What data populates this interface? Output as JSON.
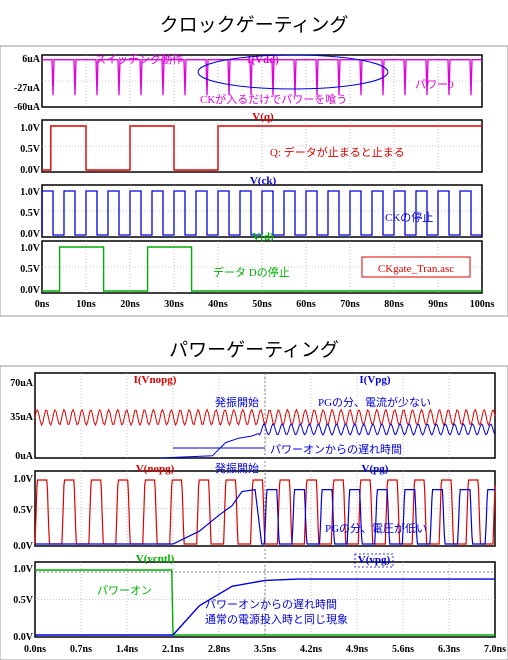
{
  "top": {
    "section_title": "クロックゲーティング",
    "x_ticks": [
      "0ns",
      "10ns",
      "20ns",
      "30ns",
      "40ns",
      "50ns",
      "60ns",
      "70ns",
      "80ns",
      "90ns",
      "100ns"
    ],
    "panels": [
      {
        "trace_label": "I(Vdd)",
        "y_ticks": [
          "6uA",
          "-27uA",
          "-60uA"
        ],
        "note_top": "スイッチング動作",
        "note_right": "パワー0",
        "note_center": "CKが入るだけでパワーを喰う",
        "color": "#e000e0"
      },
      {
        "trace_label": "V(q)",
        "y_ticks": [
          "1.0V",
          "0.5V",
          "0.0V"
        ],
        "note": "Q: データが止まると止まる",
        "color": "#e00000"
      },
      {
        "trace_label": "V(ck)",
        "y_ticks": [
          "1.0V",
          "0.5V",
          "0.0V"
        ],
        "note": "CKの停止",
        "color": "#0000e0"
      },
      {
        "trace_label": "V(d)",
        "y_ticks": [
          "1.0V",
          "0.5V",
          "0.0V"
        ],
        "note": "データ Dの停止",
        "box_label": "CKgate_Tran.asc",
        "color": "#00b000"
      }
    ]
  },
  "bottom": {
    "section_title": "パワーゲーティング",
    "x_ticks": [
      "0.0ns",
      "0.7ns",
      "1.4ns",
      "2.1ns",
      "2.8ns",
      "3.5ns",
      "4.2ns",
      "4.9ns",
      "5.6ns",
      "6.3ns",
      "7.0ns"
    ],
    "panels": [
      {
        "trace_label_1": "I(Vnopg)",
        "trace_label_2": "I(Vpg)",
        "y_ticks": [
          "70uA",
          "35uA",
          "0uA"
        ],
        "note_osc": "発振開始",
        "note_pg": "PGの分、電流が少ない",
        "note_delay": "パワーオンからの遅れ時間"
      },
      {
        "trace_label_1": "V(nopg)",
        "trace_label_2": "V(pg)",
        "y_ticks": [
          "1.0V",
          "0.5V",
          "0.0V"
        ],
        "note_osc": "発振開始",
        "note_pg": "PGの分、電圧が低い"
      },
      {
        "trace_label_1": "V(vcntl)",
        "trace_label_2": "V(vpg)",
        "y_ticks": [
          "1.0V",
          "0.5V",
          "0.0V"
        ],
        "note_on": "パワーオン",
        "note_delay": "パワーオンからの遅れ時間",
        "note_same": "通常の電源投入時と同じ現象"
      }
    ]
  },
  "chart_data": [
    {
      "type": "line",
      "title": "クロックゲーティング",
      "xlabel": "",
      "ylabel": "",
      "xlim": [
        0,
        100
      ],
      "series": [
        {
          "name": "I(Vdd)",
          "ylim": [
            -60,
            6
          ],
          "description_values": {
            "idle": 0,
            "spike": -45
          }
        },
        {
          "name": "V(q)",
          "ylim": [
            0,
            1
          ],
          "x": [
            0,
            2,
            2,
            10,
            10,
            20,
            20,
            30,
            30,
            40,
            40,
            100
          ],
          "y": [
            0,
            0,
            1,
            1,
            0,
            0,
            1,
            1,
            0,
            0,
            1,
            1
          ]
        },
        {
          "name": "V(ck)",
          "ylim": [
            0,
            1
          ],
          "period": 5,
          "active_until": 100
        },
        {
          "name": "V(d)",
          "ylim": [
            0,
            1
          ],
          "x": [
            0,
            4,
            4,
            14,
            14,
            24,
            24,
            34,
            34,
            100
          ],
          "y": [
            0,
            0,
            1,
            1,
            0,
            0,
            1,
            1,
            0,
            0
          ]
        }
      ]
    },
    {
      "type": "line",
      "title": "パワーゲーティング",
      "xlabel": "",
      "ylabel": "",
      "xlim": [
        0,
        7
      ],
      "series": [
        {
          "name": "I(Vnopg)",
          "ylim": [
            0,
            70
          ],
          "center": 37,
          "amplitude": 7
        },
        {
          "name": "I(Vpg)",
          "ylim": [
            0,
            70
          ],
          "center": 26,
          "amplitude": 5,
          "start": 3.4
        },
        {
          "name": "V(nopg)",
          "ylim": [
            0,
            1
          ],
          "period": 0.41
        },
        {
          "name": "V(pg)",
          "ylim": [
            0,
            1
          ],
          "high": 0.85,
          "start": 2.1
        },
        {
          "name": "V(vcntl)",
          "ylim": [
            0,
            1
          ],
          "x": [
            0,
            2.08,
            2.1,
            7.0
          ],
          "y": [
            1,
            1,
            0,
            0
          ]
        },
        {
          "name": "V(vpg)",
          "ylim": [
            0,
            1
          ],
          "x": [
            0,
            2.1,
            2.5,
            3.0,
            3.5,
            4.0,
            7.0
          ],
          "y": [
            0,
            0,
            0.45,
            0.75,
            0.84,
            0.86,
            0.86
          ]
        }
      ]
    }
  ]
}
